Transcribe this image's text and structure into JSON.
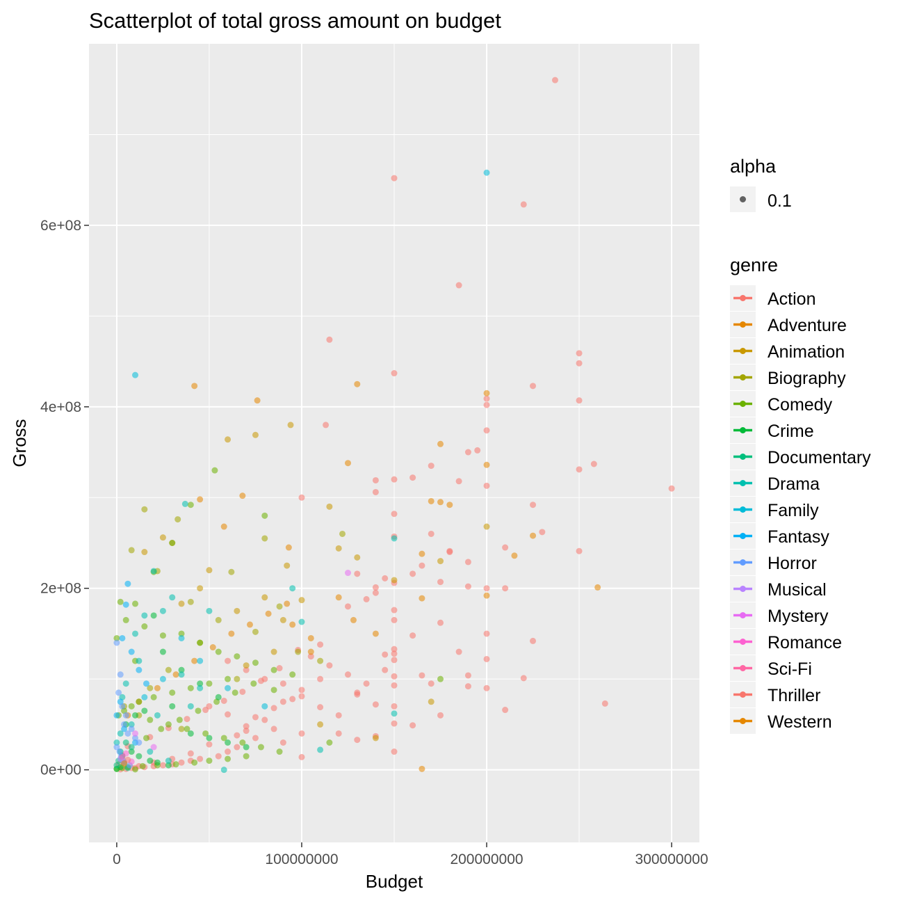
{
  "chart_data": {
    "type": "scatter",
    "title": "Scatterplot of total gross amount on budget",
    "xlabel": "Budget",
    "ylabel": "Gross",
    "xlim": [
      -15000000,
      315000000
    ],
    "ylim": [
      -80000000,
      800000000
    ],
    "x_ticks": [
      {
        "value": 0,
        "label": "0"
      },
      {
        "value": 100000000,
        "label": "100000000"
      },
      {
        "value": 200000000,
        "label": "200000000"
      },
      {
        "value": 300000000,
        "label": "300000000"
      }
    ],
    "y_ticks": [
      {
        "value": 0,
        "label": "0e+00"
      },
      {
        "value": 200000000,
        "label": "2e+08"
      },
      {
        "value": 400000000,
        "label": "4e+08"
      },
      {
        "value": 600000000,
        "label": "6e+08"
      }
    ],
    "grid": true,
    "background": "#ebebeb",
    "point_alpha": 0.55,
    "legend_alpha": {
      "title": "alpha",
      "label": "0.1"
    },
    "legend_placement": "right",
    "genre_legend_title": "genre",
    "genres": [
      {
        "name": "Action",
        "color": "#F8766D"
      },
      {
        "name": "Adventure",
        "color": "#E58700"
      },
      {
        "name": "Animation",
        "color": "#C99800"
      },
      {
        "name": "Biography",
        "color": "#A3A500"
      },
      {
        "name": "Comedy",
        "color": "#6BB100"
      },
      {
        "name": "Crime",
        "color": "#00BA38"
      },
      {
        "name": "Documentary",
        "color": "#00BF7D"
      },
      {
        "name": "Drama",
        "color": "#00C0AF"
      },
      {
        "name": "Family",
        "color": "#00BCD8"
      },
      {
        "name": "Fantasy",
        "color": "#00B0F6"
      },
      {
        "name": "Horror",
        "color": "#619CFF"
      },
      {
        "name": "Musical",
        "color": "#B983FF"
      },
      {
        "name": "Mystery",
        "color": "#E76BF3"
      },
      {
        "name": "Romance",
        "color": "#FD61D1"
      },
      {
        "name": "Sci-Fi",
        "color": "#FF67A4"
      },
      {
        "name": "Thriller",
        "color": "#F8766D"
      },
      {
        "name": "Western",
        "color": "#E58700"
      }
    ],
    "series": [
      {
        "genre": "Action",
        "x": [
          237000000,
          150000000,
          220000000,
          185000000,
          115000000,
          150000000,
          250000000,
          250000000,
          225000000,
          200000000,
          200000000,
          250000000,
          200000000,
          113000000,
          258000000,
          250000000,
          300000000,
          185000000,
          140000000,
          150000000,
          195000000,
          190000000,
          160000000,
          140000000,
          150000000,
          200000000,
          170000000,
          100000000,
          225000000,
          230000000,
          150000000,
          150000000,
          180000000,
          250000000,
          210000000,
          140000000,
          190000000,
          190000000,
          200000000,
          210000000,
          165000000,
          175000000,
          145000000,
          130000000,
          160000000,
          180000000,
          170000000,
          150000000,
          125000000,
          140000000,
          150000000,
          135000000,
          175000000,
          150000000,
          185000000,
          200000000,
          225000000,
          160000000,
          110000000,
          150000000,
          200000000,
          190000000,
          150000000,
          200000000,
          130000000,
          165000000,
          145000000,
          110000000,
          170000000,
          150000000,
          220000000,
          190000000,
          150000000,
          175000000,
          140000000,
          160000000,
          264000000,
          210000000,
          150000000,
          100000000,
          130000000,
          120000000,
          90000000,
          80000000,
          70000000,
          60000000,
          50000000,
          100000000,
          110000000,
          130000000,
          140000000,
          150000000,
          120000000,
          100000000,
          90000000,
          85000000,
          75000000,
          65000000,
          60000000,
          55000000,
          45000000,
          40000000,
          35000000,
          30000000,
          25000000,
          20000000,
          15000000,
          10000000,
          5000000,
          2000000,
          60000000,
          70000000,
          80000000,
          90000000,
          100000000,
          95000000,
          85000000,
          75000000,
          70000000,
          65000000,
          50000000,
          40000000,
          30000000,
          20000000,
          12000000,
          8000000,
          150000000,
          145000000,
          135000000,
          125000000,
          115000000,
          105000000,
          98000000,
          88000000,
          78000000,
          68000000,
          58000000,
          48000000,
          38000000,
          28000000,
          18000000,
          6000000,
          3000000,
          1000000
        ],
        "y": [
          760000000,
          652000000,
          623000000,
          534000000,
          474000000,
          437000000,
          459000000,
          448000000,
          423000000,
          409000000,
          402000000,
          407000000,
          374000000,
          380000000,
          337000000,
          331000000,
          310000000,
          318000000,
          319000000,
          320000000,
          352000000,
          350000000,
          322000000,
          306000000,
          282000000,
          313000000,
          335000000,
          300000000,
          292000000,
          262000000,
          257000000,
          206000000,
          241000000,
          241000000,
          245000000,
          201000000,
          202000000,
          229000000,
          200000000,
          200000000,
          225000000,
          207000000,
          211000000,
          216000000,
          216000000,
          240000000,
          260000000,
          176000000,
          180000000,
          195000000,
          165000000,
          188000000,
          162000000,
          128000000,
          130000000,
          150000000,
          142000000,
          148000000,
          138000000,
          121000000,
          122000000,
          104000000,
          103000000,
          90000000,
          85000000,
          104000000,
          127000000,
          100000000,
          95000000,
          93000000,
          101000000,
          92000000,
          70000000,
          60000000,
          37000000,
          49000000,
          73000000,
          66000000,
          20000000,
          14000000,
          33000000,
          40000000,
          75000000,
          55000000,
          43000000,
          61000000,
          70000000,
          81000000,
          69000000,
          83000000,
          72000000,
          51000000,
          60000000,
          40000000,
          30000000,
          45000000,
          35000000,
          25000000,
          20000000,
          15000000,
          12000000,
          10000000,
          8000000,
          6000000,
          5000000,
          4000000,
          3000000,
          2000000,
          1000000,
          500000,
          120000000,
          110000000,
          100000000,
          95000000,
          88000000,
          78000000,
          68000000,
          58000000,
          48000000,
          38000000,
          28000000,
          18000000,
          12000000,
          8000000,
          4000000,
          2000000,
          133000000,
          110000000,
          95000000,
          105000000,
          115000000,
          125000000,
          132000000,
          112000000,
          98000000,
          86000000,
          76000000,
          66000000,
          56000000,
          46000000,
          36000000,
          26000000,
          16000000,
          6000000
        ]
      },
      {
        "genre": "Adventure",
        "x": [
          200000000,
          42000000,
          76000000,
          130000000,
          125000000,
          175000000,
          170000000,
          180000000,
          225000000,
          260000000,
          215000000,
          165000000,
          93000000,
          45000000,
          58000000,
          68000000,
          128000000,
          95000000,
          105000000,
          120000000,
          175000000,
          200000000,
          165000000,
          140000000,
          105000000,
          92000000,
          82000000,
          72000000,
          62000000,
          52000000,
          42000000,
          32000000,
          22000000,
          12000000,
          165000000,
          6000000,
          200000000
        ],
        "y": [
          415000000,
          423000000,
          407000000,
          425000000,
          338000000,
          359000000,
          296000000,
          292000000,
          258000000,
          201000000,
          236000000,
          189000000,
          245000000,
          298000000,
          268000000,
          302000000,
          165000000,
          160000000,
          130000000,
          190000000,
          295000000,
          336000000,
          238000000,
          150000000,
          145000000,
          183000000,
          172000000,
          160000000,
          150000000,
          135000000,
          120000000,
          105000000,
          90000000,
          75000000,
          1000000,
          60000000,
          192000000
        ]
      },
      {
        "genre": "Animation",
        "x": [
          94000000,
          75000000,
          60000000,
          25000000,
          15000000,
          30000000,
          50000000,
          80000000,
          92000000,
          45000000,
          35000000,
          65000000,
          100000000,
          115000000,
          120000000,
          130000000,
          150000000,
          175000000,
          200000000,
          170000000,
          140000000,
          110000000,
          90000000,
          85000000,
          70000000
        ],
        "y": [
          380000000,
          369000000,
          364000000,
          256000000,
          240000000,
          250000000,
          220000000,
          190000000,
          225000000,
          200000000,
          183000000,
          175000000,
          187000000,
          290000000,
          244000000,
          234000000,
          209000000,
          230000000,
          268000000,
          75000000,
          35000000,
          50000000,
          165000000,
          130000000,
          115000000
        ]
      },
      {
        "genre": "Biography",
        "x": [
          15000000,
          8000000,
          22000000,
          33000000,
          40000000,
          55000000,
          62000000,
          75000000,
          80000000,
          88000000,
          98000000,
          110000000,
          122000000,
          45000000,
          28000000,
          18000000,
          4000000,
          12000000,
          65000000,
          35000000
        ],
        "y": [
          287000000,
          242000000,
          219000000,
          276000000,
          185000000,
          165000000,
          218000000,
          152000000,
          255000000,
          180000000,
          130000000,
          120000000,
          260000000,
          140000000,
          110000000,
          90000000,
          70000000,
          60000000,
          100000000,
          45000000
        ]
      },
      {
        "genre": "Comedy",
        "x": [
          53000000,
          80000000,
          40000000,
          30000000,
          20000000,
          10000000,
          5000000,
          2000000,
          0,
          15000000,
          25000000,
          35000000,
          45000000,
          55000000,
          65000000,
          75000000,
          85000000,
          95000000,
          60000000,
          50000000,
          40000000,
          30000000,
          20000000,
          12000000,
          8000000,
          4000000,
          1000000,
          18000000,
          28000000,
          38000000,
          48000000,
          58000000,
          68000000,
          78000000,
          88000000,
          70000000,
          60000000,
          50000000,
          42000000,
          32000000,
          22000000,
          14000000,
          6000000,
          3000000,
          0,
          10000000,
          16000000,
          24000000,
          34000000,
          44000000,
          54000000,
          64000000,
          74000000,
          85000000,
          115000000,
          175000000,
          10000000
        ],
        "y": [
          330000000,
          280000000,
          292000000,
          250000000,
          218000000,
          183000000,
          165000000,
          185000000,
          145000000,
          158000000,
          148000000,
          150000000,
          140000000,
          130000000,
          125000000,
          118000000,
          110000000,
          105000000,
          100000000,
          95000000,
          90000000,
          85000000,
          80000000,
          75000000,
          70000000,
          65000000,
          60000000,
          55000000,
          50000000,
          45000000,
          40000000,
          35000000,
          30000000,
          25000000,
          20000000,
          15000000,
          12000000,
          10000000,
          8000000,
          6000000,
          5000000,
          4000000,
          3000000,
          2000000,
          1000000,
          500000,
          35000000,
          45000000,
          55000000,
          65000000,
          75000000,
          85000000,
          95000000,
          88000000,
          30000000,
          100000000,
          120000000
        ]
      },
      {
        "genre": "Crime",
        "x": [
          20000000,
          25000000,
          35000000,
          45000000,
          55000000,
          30000000,
          15000000,
          10000000,
          5000000,
          40000000,
          50000000,
          60000000,
          70000000,
          8000000,
          12000000,
          18000000,
          22000000,
          28000000,
          2000000,
          0
        ],
        "y": [
          170000000,
          130000000,
          110000000,
          95000000,
          80000000,
          70000000,
          65000000,
          60000000,
          50000000,
          40000000,
          35000000,
          30000000,
          25000000,
          20000000,
          15000000,
          10000000,
          8000000,
          5000000,
          3000000,
          1000000
        ]
      },
      {
        "genre": "Documentary",
        "x": [
          5000000,
          2000000,
          1000000,
          0,
          3000000,
          8000000,
          4000000,
          6000000
        ],
        "y": [
          30000000,
          20000000,
          10000000,
          5000000,
          15000000,
          25000000,
          8000000,
          2000000
        ]
      },
      {
        "genre": "Drama",
        "x": [
          37000000,
          20000000,
          25000000,
          15000000,
          10000000,
          30000000,
          50000000,
          100000000,
          95000000,
          58000000,
          12000000,
          5000000,
          3000000,
          35000000,
          45000000,
          150000000,
          150000000,
          110000000,
          40000000,
          22000000,
          8000000,
          2000000,
          0,
          18000000,
          28000000
        ],
        "y": [
          293000000,
          219000000,
          175000000,
          170000000,
          150000000,
          190000000,
          175000000,
          163000000,
          200000000,
          0,
          120000000,
          95000000,
          80000000,
          105000000,
          90000000,
          255000000,
          62000000,
          22000000,
          70000000,
          60000000,
          50000000,
          40000000,
          30000000,
          20000000,
          10000000
        ]
      },
      {
        "genre": "Family",
        "x": [
          200000000,
          10000000,
          35000000,
          45000000,
          25000000,
          15000000,
          60000000,
          80000000
        ],
        "y": [
          658000000,
          435000000,
          145000000,
          120000000,
          100000000,
          80000000,
          90000000,
          70000000
        ]
      },
      {
        "genre": "Fantasy",
        "x": [
          6000000,
          5000000,
          3000000,
          8000000,
          12000000,
          16000000,
          2000000,
          0,
          4000000,
          10000000
        ],
        "y": [
          205000000,
          182000000,
          145000000,
          130000000,
          110000000,
          95000000,
          75000000,
          60000000,
          45000000,
          30000000
        ]
      },
      {
        "genre": "Horror",
        "x": [
          0,
          2000000,
          1000000,
          3000000,
          5000000,
          4000000,
          8000000,
          6000000,
          10000000,
          12000000,
          0,
          1500000,
          2500000,
          3500000,
          7000000
        ],
        "y": [
          140000000,
          105000000,
          85000000,
          70000000,
          60000000,
          50000000,
          45000000,
          40000000,
          35000000,
          30000000,
          25000000,
          20000000,
          15000000,
          10000000,
          5000000
        ]
      },
      {
        "genre": "Musical",
        "x": [
          2000000,
          4000000
        ],
        "y": [
          12000000,
          8000000
        ]
      },
      {
        "genre": "Mystery",
        "x": [
          125000000,
          10000000,
          20000000
        ],
        "y": [
          217000000,
          40000000,
          25000000
        ]
      },
      {
        "genre": "Romance",
        "x": [
          5000000,
          8000000
        ],
        "y": [
          18000000,
          9000000
        ]
      },
      {
        "genre": "Sci-Fi",
        "x": [
          3000000
        ],
        "y": [
          14000000
        ]
      },
      {
        "genre": "Thriller",
        "x": [
          6000000
        ],
        "y": [
          11000000
        ]
      },
      {
        "genre": "Western",
        "x": [
          4000000
        ],
        "y": [
          7000000
        ]
      }
    ]
  }
}
